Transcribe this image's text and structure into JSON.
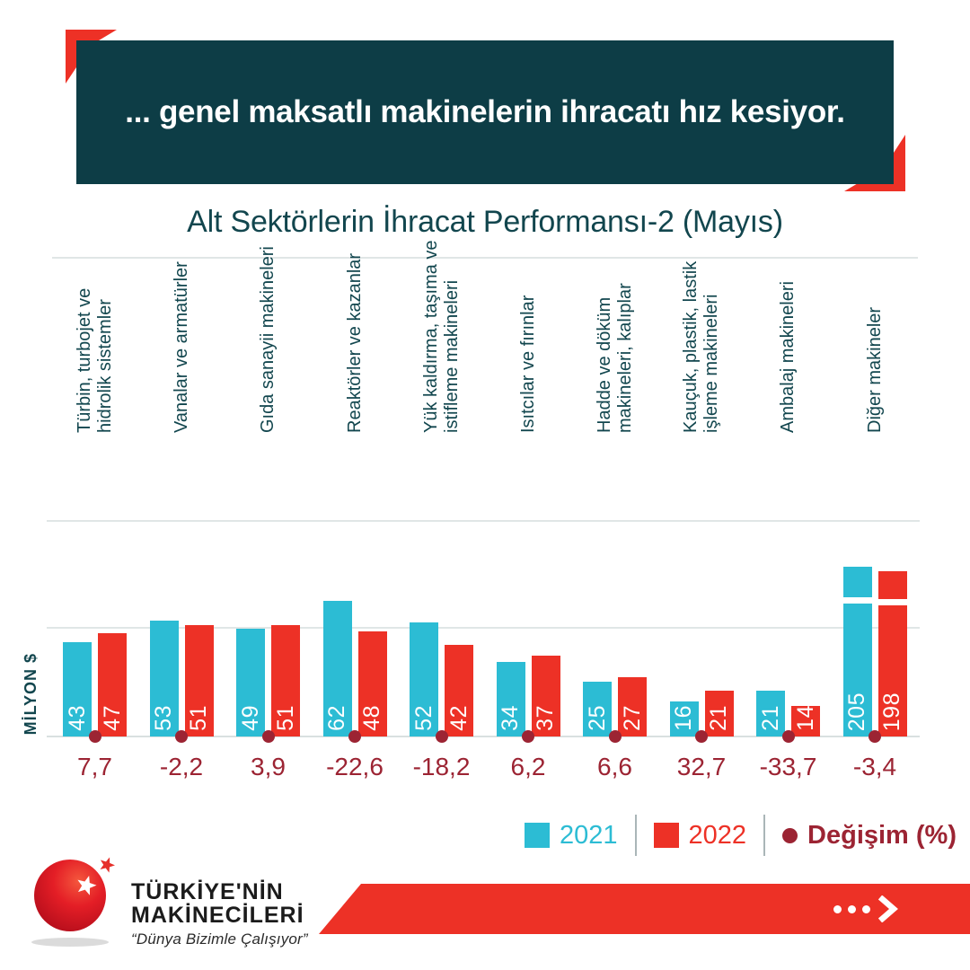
{
  "header": {
    "banner_text": "... genel maksatlı makinelerin ihracatı hız kesiyor."
  },
  "chart_data": {
    "type": "bar",
    "title": "Alt Sektörlerin İhracat Performansı-2 (Mayıs)",
    "ylabel": "MİLYON $",
    "xlabel": "",
    "ylim": [
      0,
      100
    ],
    "gridlines": [
      0,
      50,
      100
    ],
    "grid": true,
    "axis_break_note": "bars above 100 are drawn with a break (Diğer makineler)",
    "categories": [
      "Türbin, turbojet ve\nhidrolik sistemler",
      "Vanalar ve armatürler",
      "Gıda sanayii makineleri",
      "Reaktörler ve kazanlar",
      "Yük kaldırma, taşıma ve\nistifleme makineleri",
      "Isıtcılar ve fırınlar",
      "Hadde ve döküm\nmakineleri, kalıplar",
      "Kauçuk, plastik, lastik\nişleme makineleri",
      "Ambalaj makineleri",
      "Diğer makineler"
    ],
    "series": [
      {
        "name": "2021",
        "color": "#2cbcd4",
        "values": [
          43,
          53,
          49,
          62,
          52,
          34,
          25,
          16,
          21,
          205
        ]
      },
      {
        "name": "2022",
        "color": "#ed3126",
        "values": [
          47,
          51,
          51,
          48,
          42,
          37,
          27,
          21,
          14,
          198
        ]
      }
    ],
    "change_series": {
      "name": "Değişim (%)",
      "color": "#9c2433",
      "values": [
        7.7,
        -2.2,
        3.9,
        -22.6,
        -18.2,
        6.2,
        6.6,
        32.7,
        -33.7,
        -3.4
      ],
      "labels": [
        "7,7",
        "-2,2",
        "3,9",
        "-22,6",
        "-18,2",
        "6,2",
        "6,6",
        "32,7",
        "-33,7",
        "-3,4"
      ]
    },
    "legend": [
      {
        "label": "2021",
        "color": "#2cbcd4",
        "marker": "square"
      },
      {
        "label": "2022",
        "color": "#ed3126",
        "marker": "square"
      },
      {
        "label": "Değişim (%)",
        "color": "#9c2433",
        "marker": "dot"
      }
    ],
    "legend_position": "bottom-right"
  },
  "footer": {
    "brand_line1": "TÜRKİYE'NİN",
    "brand_line2": "MAKİNECİLERİ",
    "slogan": "“Dünya Bizimle Çalışıyor”",
    "cta_icon": "dots-arrow-icon"
  },
  "colors": {
    "header_bg": "#0d3d46",
    "accent_red": "#ed3126",
    "teal_text": "#12464e",
    "dark_red": "#9c2433",
    "gridline": "#e0e6e6"
  }
}
